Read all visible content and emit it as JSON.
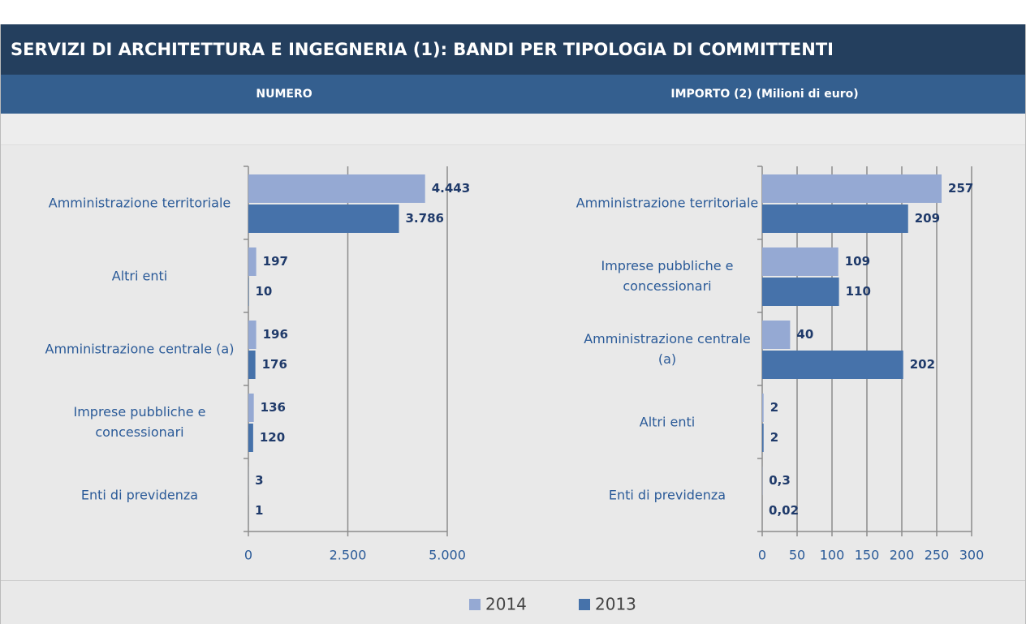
{
  "header": {
    "title": "SERVIZI DI ARCHITETTURA E INGEGNERIA (1): BANDI PER TIPOLOGIA DI COMMITTENTI"
  },
  "chart_data": [
    {
      "type": "barh",
      "title": "NUMERO",
      "categories": [
        "Amministrazione territoriale",
        "Altri enti",
        "Amministrazione centrale (a)",
        "Imprese pubbliche e concessionari",
        "Enti di previdenza"
      ],
      "series": [
        {
          "name": "2014",
          "color": "#95a9d3",
          "values": [
            4443,
            197,
            196,
            136,
            3
          ],
          "value_labels": [
            "4.443",
            "197",
            "196",
            "136",
            "3"
          ]
        },
        {
          "name": "2013",
          "color": "#4672aa",
          "values": [
            3786,
            10,
            176,
            120,
            1
          ],
          "value_labels": [
            "3.786",
            "10",
            "176",
            "120",
            "1"
          ]
        }
      ],
      "xlim": [
        0,
        5000
      ],
      "xticks": [
        0,
        {
          "value": 2500,
          "label": "2.500"
        },
        {
          "value": 5000,
          "label": "5.000"
        }
      ],
      "grid": true
    },
    {
      "type": "barh",
      "title": "IMPORTO (2) (Milioni di euro)",
      "categories": [
        "Amministrazione territoriale",
        "Imprese pubbliche e concessionari",
        "Amministrazione centrale (a)",
        "Altri enti",
        "Enti di previdenza"
      ],
      "series": [
        {
          "color": "#95a9d3",
          "values": [
            257,
            109,
            40,
            2,
            0.3
          ],
          "value_labels": [
            "257",
            "109",
            "40",
            "2",
            "0,3"
          ]
        },
        {
          "color": "#4672aa",
          "values": [
            209,
            110,
            202,
            2,
            0.02
          ],
          "value_labels": [
            "209",
            "110",
            "202",
            "2",
            "0,02"
          ]
        }
      ],
      "xlim": [
        0,
        300
      ],
      "xticks": [
        0,
        50,
        100,
        150,
        200,
        250,
        300
      ],
      "grid": true
    }
  ]
}
